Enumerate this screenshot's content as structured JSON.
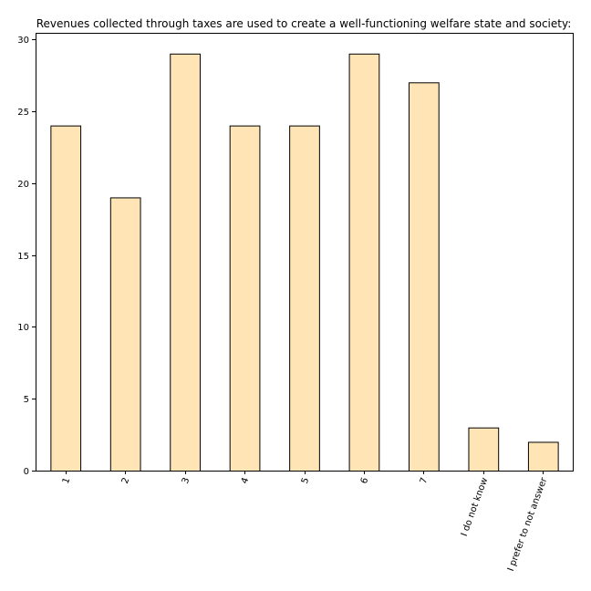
{
  "chart_data": {
    "type": "bar",
    "title": "Revenues collected through taxes are used to create a well-functioning welfare state and society:",
    "xlabel": "",
    "ylabel": "",
    "categories": [
      "1",
      "2",
      "3",
      "4",
      "5",
      "6",
      "7",
      "I do not know",
      "I prefer to not answer"
    ],
    "values": [
      24,
      19,
      29,
      24,
      24,
      29,
      27,
      3,
      2
    ],
    "ylim": [
      0,
      30
    ],
    "yticks": [
      "0",
      "5",
      "10",
      "15",
      "20",
      "25",
      "30"
    ],
    "grid": false,
    "legend": "none",
    "bar_color": "#ffe4b5",
    "edge_color": "#000000"
  }
}
